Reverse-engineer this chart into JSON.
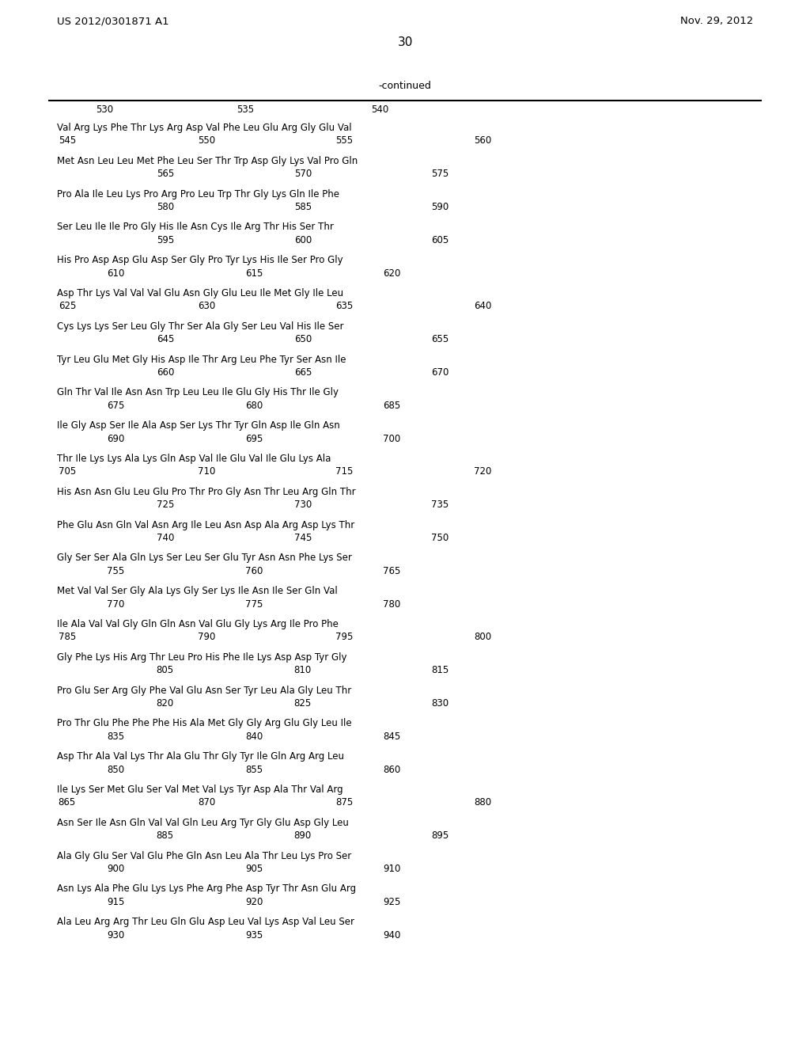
{
  "header_left": "US 2012/0301871 A1",
  "header_right": "Nov. 29, 2012",
  "page_number": "30",
  "continued_label": "-continued",
  "ruler_nums": [
    [
      "530",
      0.118
    ],
    [
      "535",
      0.292
    ],
    [
      "540",
      0.458
    ]
  ],
  "blocks": [
    {
      "seq": "Val Arg Lys Phe Thr Lys Arg Asp Val Phe Leu Glu Arg Gly Glu Val",
      "nums": [
        [
          "545",
          0.072
        ],
        [
          "550",
          0.244
        ],
        [
          "555",
          0.414
        ],
        [
          "560",
          0.585
        ]
      ]
    },
    {
      "seq": "Met Asn Leu Leu Met Phe Leu Ser Thr Trp Asp Gly Lys Val Pro Gln",
      "nums": [
        [
          "565",
          0.193
        ],
        [
          "570",
          0.363
        ],
        [
          "575",
          0.532
        ]
      ]
    },
    {
      "seq": "Pro Ala Ile Leu Lys Pro Arg Pro Leu Trp Thr Gly Lys Gln Ile Phe",
      "nums": [
        [
          "580",
          0.193
        ],
        [
          "585",
          0.363
        ],
        [
          "590",
          0.532
        ]
      ]
    },
    {
      "seq": "Ser Leu Ile Ile Pro Gly His Ile Asn Cys Ile Arg Thr His Ser Thr",
      "nums": [
        [
          "595",
          0.193
        ],
        [
          "600",
          0.363
        ],
        [
          "605",
          0.532
        ]
      ]
    },
    {
      "seq": "His Pro Asp Asp Glu Asp Ser Gly Pro Tyr Lys His Ile Ser Pro Gly",
      "nums": [
        [
          "610",
          0.132
        ],
        [
          "615",
          0.303
        ],
        [
          "620",
          0.473
        ]
      ]
    },
    {
      "seq": "Asp Thr Lys Val Val Val Glu Asn Gly Glu Leu Ile Met Gly Ile Leu",
      "nums": [
        [
          "625",
          0.072
        ],
        [
          "630",
          0.244
        ],
        [
          "635",
          0.414
        ],
        [
          "640",
          0.585
        ]
      ]
    },
    {
      "seq": "Cys Lys Lys Ser Leu Gly Thr Ser Ala Gly Ser Leu Val His Ile Ser",
      "nums": [
        [
          "645",
          0.193
        ],
        [
          "650",
          0.363
        ],
        [
          "655",
          0.532
        ]
      ]
    },
    {
      "seq": "Tyr Leu Glu Met Gly His Asp Ile Thr Arg Leu Phe Tyr Ser Asn Ile",
      "nums": [
        [
          "660",
          0.193
        ],
        [
          "665",
          0.363
        ],
        [
          "670",
          0.532
        ]
      ]
    },
    {
      "seq": "Gln Thr Val Ile Asn Asn Trp Leu Leu Ile Glu Gly His Thr Ile Gly",
      "nums": [
        [
          "675",
          0.132
        ],
        [
          "680",
          0.303
        ],
        [
          "685",
          0.473
        ]
      ]
    },
    {
      "seq": "Ile Gly Asp Ser Ile Ala Asp Ser Lys Thr Tyr Gln Asp Ile Gln Asn",
      "nums": [
        [
          "690",
          0.132
        ],
        [
          "695",
          0.303
        ],
        [
          "700",
          0.473
        ]
      ]
    },
    {
      "seq": "Thr Ile Lys Lys Ala Lys Gln Asp Val Ile Glu Val Ile Glu Lys Ala",
      "nums": [
        [
          "705",
          0.072
        ],
        [
          "710",
          0.244
        ],
        [
          "715",
          0.414
        ],
        [
          "720",
          0.585
        ]
      ]
    },
    {
      "seq": "His Asn Asn Glu Leu Glu Pro Thr Pro Gly Asn Thr Leu Arg Gln Thr",
      "nums": [
        [
          "725",
          0.193
        ],
        [
          "730",
          0.363
        ],
        [
          "735",
          0.532
        ]
      ]
    },
    {
      "seq": "Phe Glu Asn Gln Val Asn Arg Ile Leu Asn Asp Ala Arg Asp Lys Thr",
      "nums": [
        [
          "740",
          0.193
        ],
        [
          "745",
          0.363
        ],
        [
          "750",
          0.532
        ]
      ]
    },
    {
      "seq": "Gly Ser Ser Ala Gln Lys Ser Leu Ser Glu Tyr Asn Asn Phe Lys Ser",
      "nums": [
        [
          "755",
          0.132
        ],
        [
          "760",
          0.303
        ],
        [
          "765",
          0.473
        ]
      ]
    },
    {
      "seq": "Met Val Val Ser Gly Ala Lys Gly Ser Lys Ile Asn Ile Ser Gln Val",
      "nums": [
        [
          "770",
          0.132
        ],
        [
          "775",
          0.303
        ],
        [
          "780",
          0.473
        ]
      ]
    },
    {
      "seq": "Ile Ala Val Val Gly Gln Gln Asn Val Glu Gly Lys Arg Ile Pro Phe",
      "nums": [
        [
          "785",
          0.072
        ],
        [
          "790",
          0.244
        ],
        [
          "795",
          0.414
        ],
        [
          "800",
          0.585
        ]
      ]
    },
    {
      "seq": "Gly Phe Lys His Arg Thr Leu Pro His Phe Ile Lys Asp Asp Tyr Gly",
      "nums": [
        [
          "805",
          0.193
        ],
        [
          "810",
          0.363
        ],
        [
          "815",
          0.532
        ]
      ]
    },
    {
      "seq": "Pro Glu Ser Arg Gly Phe Val Glu Asn Ser Tyr Leu Ala Gly Leu Thr",
      "nums": [
        [
          "820",
          0.193
        ],
        [
          "825",
          0.363
        ],
        [
          "830",
          0.532
        ]
      ]
    },
    {
      "seq": "Pro Thr Glu Phe Phe Phe His Ala Met Gly Gly Arg Glu Gly Leu Ile",
      "nums": [
        [
          "835",
          0.132
        ],
        [
          "840",
          0.303
        ],
        [
          "845",
          0.473
        ]
      ]
    },
    {
      "seq": "Asp Thr Ala Val Lys Thr Ala Glu Thr Gly Tyr Ile Gln Arg Arg Leu",
      "nums": [
        [
          "850",
          0.132
        ],
        [
          "855",
          0.303
        ],
        [
          "860",
          0.473
        ]
      ]
    },
    {
      "seq": "Ile Lys Ser Met Glu Ser Val Met Val Lys Tyr Asp Ala Thr Val Arg",
      "nums": [
        [
          "865",
          0.072
        ],
        [
          "870",
          0.244
        ],
        [
          "875",
          0.414
        ],
        [
          "880",
          0.585
        ]
      ]
    },
    {
      "seq": "Asn Ser Ile Asn Gln Val Val Gln Leu Arg Tyr Gly Glu Asp Gly Leu",
      "nums": [
        [
          "885",
          0.193
        ],
        [
          "890",
          0.363
        ],
        [
          "895",
          0.532
        ]
      ]
    },
    {
      "seq": "Ala Gly Glu Ser Val Glu Phe Gln Asn Leu Ala Thr Leu Lys Pro Ser",
      "nums": [
        [
          "900",
          0.132
        ],
        [
          "905",
          0.303
        ],
        [
          "910",
          0.473
        ]
      ]
    },
    {
      "seq": "Asn Lys Ala Phe Glu Lys Lys Phe Arg Phe Asp Tyr Thr Asn Glu Arg",
      "nums": [
        [
          "915",
          0.132
        ],
        [
          "920",
          0.303
        ],
        [
          "925",
          0.473
        ]
      ]
    },
    {
      "seq": "Ala Leu Arg Arg Thr Leu Gln Glu Asp Leu Val Lys Asp Val Leu Ser",
      "nums": [
        [
          "930",
          0.132
        ],
        [
          "935",
          0.303
        ],
        [
          "940",
          0.473
        ]
      ]
    }
  ]
}
